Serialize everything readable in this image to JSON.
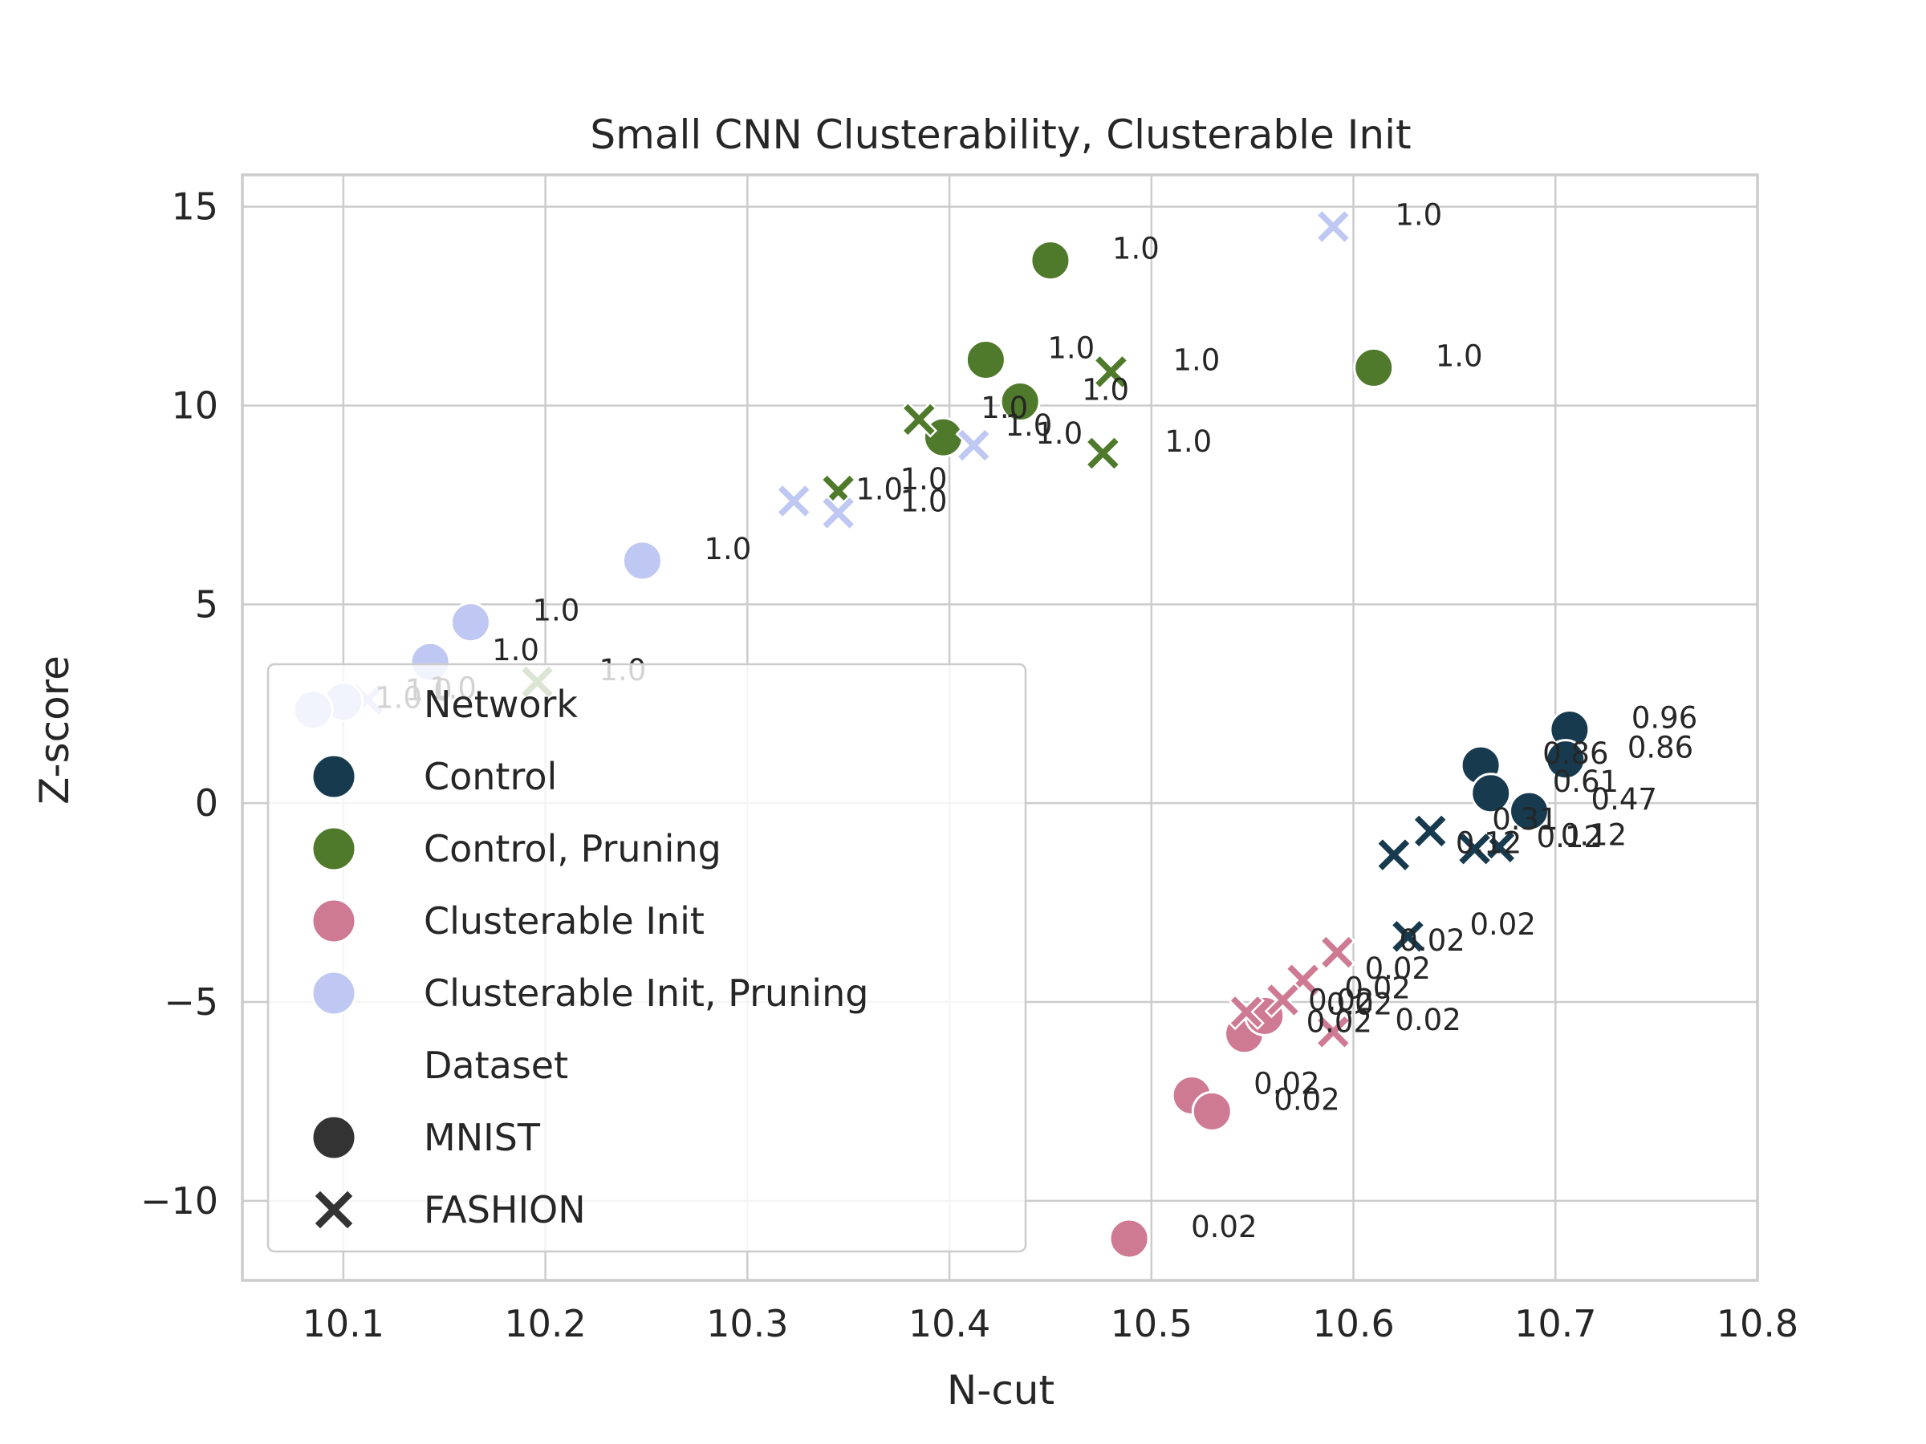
{
  "chart_data": {
    "type": "scatter",
    "title": "Small CNN Clusterability, Clusterable Init",
    "xlabel": "N-cut",
    "ylabel": "Z-score",
    "xlim": [
      10.05,
      10.8
    ],
    "ylim": [
      -12,
      15.8
    ],
    "xticks": [
      {
        "value": 10.1,
        "label": "10.1"
      },
      {
        "value": 10.2,
        "label": "10.2"
      },
      {
        "value": 10.3,
        "label": "10.3"
      },
      {
        "value": 10.4,
        "label": "10.4"
      },
      {
        "value": 10.5,
        "label": "10.5"
      },
      {
        "value": 10.6,
        "label": "10.6"
      },
      {
        "value": 10.7,
        "label": "10.7"
      },
      {
        "value": 10.8,
        "label": "10.8"
      }
    ],
    "yticks": [
      {
        "value": 15,
        "label": "15"
      },
      {
        "value": 10,
        "label": "10"
      },
      {
        "value": 5,
        "label": "5"
      },
      {
        "value": 0,
        "label": "0"
      },
      {
        "value": -5,
        "label": "−5"
      },
      {
        "value": -10,
        "label": "−10"
      }
    ],
    "grid": true,
    "legend_position": "lower-left",
    "network_colors": {
      "Control": "#173a4e",
      "Control, Pruning": "#4f7a2c",
      "Clusterable Init": "#cf7a93",
      "Clusterable Init, Pruning": "#bfc8f2"
    },
    "marker_colors": {
      "dark": "#333333"
    },
    "legend": {
      "network_title": "Network",
      "networks": [
        "Control",
        "Control, Pruning",
        "Clusterable Init",
        "Clusterable Init, Pruning"
      ],
      "dataset_title": "Dataset",
      "datasets": [
        "MNIST",
        "FASHION"
      ]
    },
    "points": [
      {
        "network": "Control",
        "dataset": "MNIST",
        "x": 10.707,
        "y": 1.85,
        "label": "0.96"
      },
      {
        "network": "Control",
        "dataset": "MNIST",
        "x": 10.663,
        "y": 0.95,
        "label": "0.86"
      },
      {
        "network": "Control",
        "dataset": "MNIST",
        "x": 10.705,
        "y": 1.1,
        "label": "0.86"
      },
      {
        "network": "Control",
        "dataset": "MNIST",
        "x": 10.668,
        "y": 0.25,
        "label": "0.61"
      },
      {
        "network": "Control",
        "dataset": "MNIST",
        "x": 10.687,
        "y": -0.2,
        "label": "0.47"
      },
      {
        "network": "Control",
        "dataset": "FASHION",
        "x": 10.638,
        "y": -0.7,
        "label": "0.31"
      },
      {
        "network": "Control",
        "dataset": "FASHION",
        "x": 10.672,
        "y": -1.1,
        "label": "0.12"
      },
      {
        "network": "Control",
        "dataset": "FASHION",
        "x": 10.66,
        "y": -1.15,
        "label": "0.12"
      },
      {
        "network": "Control",
        "dataset": "FASHION",
        "x": 10.62,
        "y": -1.3,
        "label": "0.12"
      },
      {
        "network": "Control",
        "dataset": "FASHION",
        "x": 10.627,
        "y": -3.35,
        "label": "0.02"
      },
      {
        "network": "Control, Pruning",
        "dataset": "MNIST",
        "x": 10.45,
        "y": 13.65,
        "label": "1.0"
      },
      {
        "network": "Control, Pruning",
        "dataset": "MNIST",
        "x": 10.61,
        "y": 10.95,
        "label": "1.0"
      },
      {
        "network": "Control, Pruning",
        "dataset": "MNIST",
        "x": 10.418,
        "y": 11.15,
        "label": "1.0"
      },
      {
        "network": "Control, Pruning",
        "dataset": "MNIST",
        "x": 10.435,
        "y": 10.1,
        "label": "1.0"
      },
      {
        "network": "Control, Pruning",
        "dataset": "MNIST",
        "x": 10.397,
        "y": 9.2,
        "label": "1.0"
      },
      {
        "network": "Control, Pruning",
        "dataset": "FASHION",
        "x": 10.48,
        "y": 10.85,
        "label": "1.0"
      },
      {
        "network": "Control, Pruning",
        "dataset": "FASHION",
        "x": 10.385,
        "y": 9.65,
        "label": "1.0"
      },
      {
        "network": "Control, Pruning",
        "dataset": "FASHION",
        "x": 10.476,
        "y": 8.8,
        "label": "1.0"
      },
      {
        "network": "Control, Pruning",
        "dataset": "FASHION",
        "x": 10.345,
        "y": 7.85,
        "label": "1.0"
      },
      {
        "network": "Control, Pruning",
        "dataset": "FASHION",
        "x": 10.196,
        "y": 3.05,
        "label": "1.0"
      },
      {
        "network": "Clusterable Init",
        "dataset": "MNIST",
        "x": 10.489,
        "y": -10.95,
        "label": "0.02"
      },
      {
        "network": "Clusterable Init",
        "dataset": "MNIST",
        "x": 10.52,
        "y": -7.35,
        "label": "0.02"
      },
      {
        "network": "Clusterable Init",
        "dataset": "MNIST",
        "x": 10.53,
        "y": -7.75,
        "label": "0.02"
      },
      {
        "network": "Clusterable Init",
        "dataset": "MNIST",
        "x": 10.546,
        "y": -5.8,
        "label": "0.02"
      },
      {
        "network": "Clusterable Init",
        "dataset": "MNIST",
        "x": 10.556,
        "y": -5.35,
        "label": "0.02"
      },
      {
        "network": "Clusterable Init",
        "dataset": "FASHION",
        "x": 10.592,
        "y": -3.75,
        "label": "0.02"
      },
      {
        "network": "Clusterable Init",
        "dataset": "FASHION",
        "x": 10.575,
        "y": -4.45,
        "label": "0.02"
      },
      {
        "network": "Clusterable Init",
        "dataset": "FASHION",
        "x": 10.565,
        "y": -4.95,
        "label": "0.02"
      },
      {
        "network": "Clusterable Init",
        "dataset": "FASHION",
        "x": 10.547,
        "y": -5.25,
        "label": "0.02"
      },
      {
        "network": "Clusterable Init",
        "dataset": "FASHION",
        "x": 10.59,
        "y": -5.75,
        "label": "0.02"
      },
      {
        "network": "Clusterable Init, Pruning",
        "dataset": "FASHION",
        "x": 10.59,
        "y": 14.5,
        "label": "1.0"
      },
      {
        "network": "Clusterable Init, Pruning",
        "dataset": "FASHION",
        "x": 10.412,
        "y": 9.0,
        "label": "1.0"
      },
      {
        "network": "Clusterable Init, Pruning",
        "dataset": "FASHION",
        "x": 10.323,
        "y": 7.6,
        "label": "1.0"
      },
      {
        "network": "Clusterable Init, Pruning",
        "dataset": "FASHION",
        "x": 10.345,
        "y": 7.3,
        "label": "1.0"
      },
      {
        "network": "Clusterable Init, Pruning",
        "dataset": "FASHION",
        "x": 10.112,
        "y": 2.6,
        "label": "1.0"
      },
      {
        "network": "Clusterable Init, Pruning",
        "dataset": "MNIST",
        "x": 10.248,
        "y": 6.1,
        "label": "1.0"
      },
      {
        "network": "Clusterable Init, Pruning",
        "dataset": "MNIST",
        "x": 10.163,
        "y": 4.55,
        "label": "1.0"
      },
      {
        "network": "Clusterable Init, Pruning",
        "dataset": "MNIST",
        "x": 10.143,
        "y": 3.55,
        "label": "1.0"
      },
      {
        "network": "Clusterable Init, Pruning",
        "dataset": "MNIST",
        "x": 10.1,
        "y": 2.55,
        "label": "1.0"
      },
      {
        "network": "Clusterable Init, Pruning",
        "dataset": "MNIST",
        "x": 10.085,
        "y": 2.35,
        "label": "1.0"
      }
    ]
  }
}
